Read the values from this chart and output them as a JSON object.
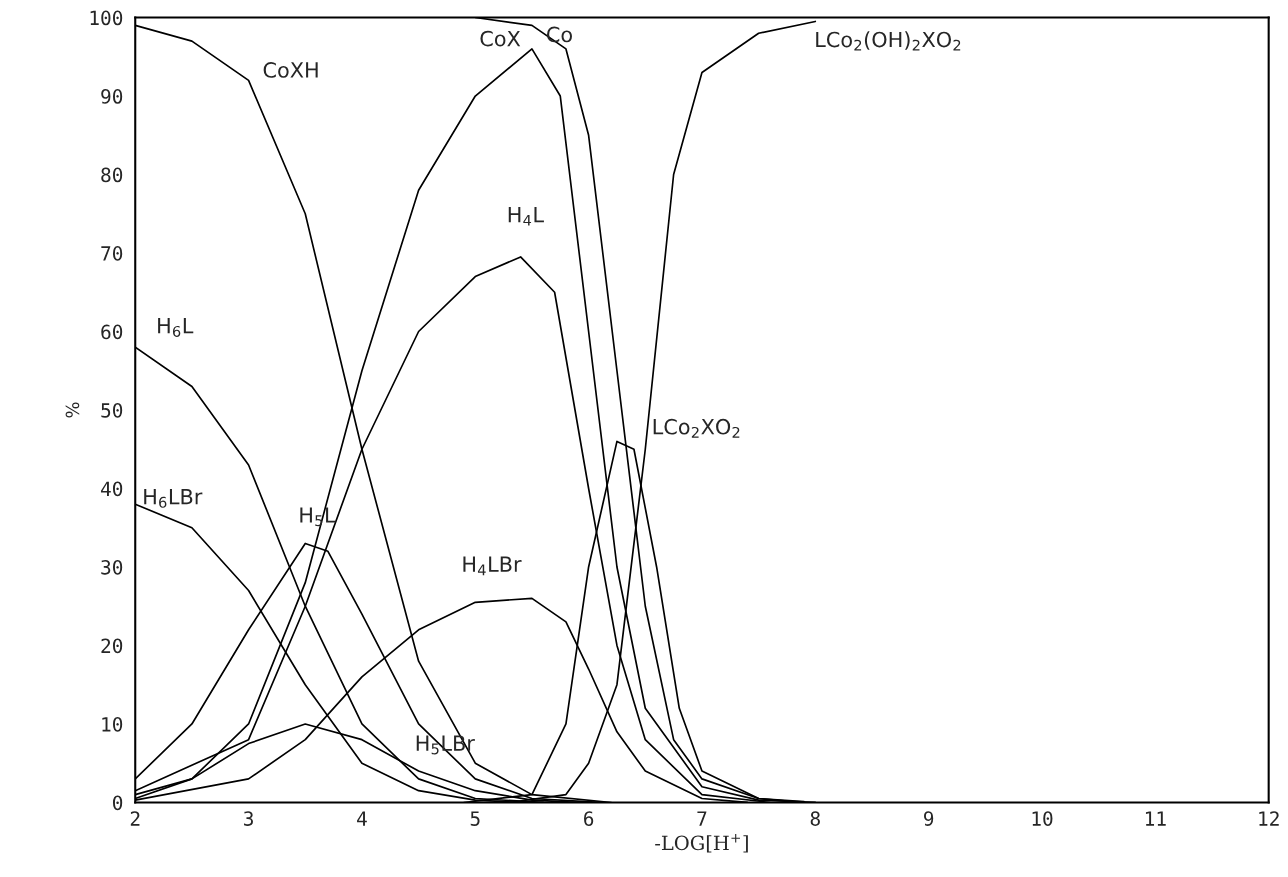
{
  "chart_data": {
    "type": "line",
    "xlabel": "-LOG[H$^{+}$]",
    "ylabel": "%",
    "xlim": [
      2,
      12
    ],
    "ylim": [
      0,
      100
    ],
    "xticks": [
      2,
      3,
      4,
      5,
      6,
      7,
      8,
      9,
      10,
      11,
      12
    ],
    "yticks": [
      0,
      10,
      20,
      30,
      40,
      50,
      60,
      70,
      80,
      90,
      100
    ],
    "marker": "none",
    "line_style": "solid",
    "grid": false,
    "legend": false,
    "series": [
      {
        "color": "#000000",
        "x": [
          2,
          2.5,
          3,
          3.5,
          4,
          4.5,
          5,
          5.5,
          6.2
        ],
        "values": [
          99,
          97,
          92,
          75,
          45,
          18,
          5,
          1,
          0
        ]
      },
      {
        "color": "#000000",
        "x": [
          2,
          2.5,
          3,
          3.5,
          4,
          4.5,
          5,
          5.5,
          5.75,
          6,
          6.25,
          6.5,
          7,
          7.5,
          8
        ],
        "values": [
          1,
          3,
          10,
          28,
          55,
          78,
          90,
          96,
          90,
          60,
          30,
          12,
          2,
          0.3,
          0
        ]
      },
      {
        "color": "#000000",
        "x": [
          5,
          5.5,
          5.8,
          6,
          6.25,
          6.5,
          6.75,
          7,
          7.5,
          7.9
        ],
        "values": [
          100,
          99,
          96,
          85,
          55,
          25,
          8,
          3,
          0.5,
          0.1
        ]
      },
      {
        "color": "#000000",
        "x": [
          2,
          3,
          3.5,
          4,
          4.5,
          5,
          5.4,
          5.7,
          6,
          6.25,
          6.5,
          7,
          7.6
        ],
        "values": [
          1.5,
          8,
          25,
          45,
          60,
          67,
          69.5,
          65,
          40,
          20,
          8,
          1,
          0
        ]
      },
      {
        "color": "#000000",
        "x": [
          2,
          2.5,
          3,
          3.5,
          4,
          4.5,
          5,
          5.6
        ],
        "values": [
          58,
          53,
          43,
          25,
          10,
          3,
          0.5,
          0
        ]
      },
      {
        "color": "#000000",
        "x": [
          2,
          2.5,
          3,
          3.5,
          4,
          4.5,
          5,
          5.4
        ],
        "values": [
          38,
          35,
          27,
          15,
          5,
          1.5,
          0.3,
          0
        ]
      },
      {
        "color": "#000000",
        "x": [
          2,
          2.5,
          3,
          3.5,
          3.7,
          4,
          4.5,
          5,
          5.5,
          6.1
        ],
        "values": [
          3,
          10,
          22,
          33,
          32,
          24,
          10,
          3,
          0.5,
          0
        ]
      },
      {
        "color": "#000000",
        "x": [
          2,
          2.5,
          3,
          3.5,
          4,
          4.5,
          5,
          5.5,
          5.9
        ],
        "values": [
          0.5,
          3,
          7.5,
          10,
          8,
          4,
          1.5,
          0.3,
          0
        ]
      },
      {
        "color": "#000000",
        "x": [
          2,
          3,
          3.5,
          4,
          4.5,
          5,
          5.5,
          5.8,
          6,
          6.25,
          6.5,
          7,
          7.4
        ],
        "values": [
          0.3,
          3,
          8,
          16,
          22,
          25.5,
          26,
          23,
          17,
          9,
          4,
          0.5,
          0
        ]
      },
      {
        "color": "#000000",
        "x": [
          4.9,
          5.5,
          5.8,
          6,
          6.25,
          6.4,
          6.6,
          6.8,
          7,
          7.5,
          7.8
        ],
        "values": [
          0,
          1,
          10,
          30,
          46,
          45,
          30,
          12,
          4,
          0.5,
          0.1
        ]
      },
      {
        "color": "#000000",
        "x": [
          5.3,
          5.8,
          6,
          6.25,
          6.5,
          6.75,
          7,
          7.5,
          8
        ],
        "values": [
          0,
          1,
          5,
          15,
          45,
          80,
          93,
          98,
          99.5
        ]
      }
    ],
    "annotations": [
      {
        "text": "CoXH",
        "x": 3,
        "y": 92
      },
      {
        "text": "CoX",
        "x": 5.5,
        "y": 96
      },
      {
        "text": "Co",
        "x": 5.5,
        "y": 99
      },
      {
        "text": "H$_{4}$L",
        "x": 5.4,
        "y": 69.5
      },
      {
        "text": "H$_{6}$L",
        "x": 2,
        "y": 58
      },
      {
        "text": "H$_{6}$LBr",
        "x": 2,
        "y": 38
      },
      {
        "text": "H$_{5}$L",
        "x": 3.5,
        "y": 33
      },
      {
        "text": "H$_{5}$LBr",
        "x": 4,
        "y": 8
      },
      {
        "text": "H$_{4}$LBr",
        "x": 5,
        "y": 25.5
      },
      {
        "text": "LCo$_{2}$XO$_{2}$",
        "x": 6.25,
        "y": 46
      },
      {
        "text": "LCo$_{2}$(OH)$_{2}$XO$_{2}$",
        "x": 7.5,
        "y": 98
      }
    ]
  }
}
